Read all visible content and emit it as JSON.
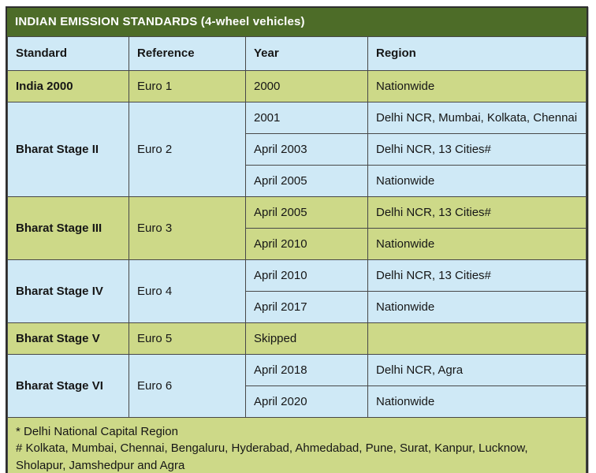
{
  "title": "INDIAN EMISSION STANDARDS (4-wheel vehicles)",
  "columns": [
    "Standard",
    "Reference",
    "Year",
    "Region"
  ],
  "groups": [
    {
      "standard": "India 2000",
      "reference": "Euro 1",
      "theme": "green",
      "entries": [
        {
          "year": "2000",
          "region": "Nationwide"
        }
      ]
    },
    {
      "standard": "Bharat Stage II",
      "reference": "Euro 2",
      "theme": "blue",
      "entries": [
        {
          "year": "2001",
          "region": "Delhi NCR, Mumbai, Kolkata, Chennai"
        },
        {
          "year": "April 2003",
          "region": "Delhi NCR, 13 Cities#"
        },
        {
          "year": "April 2005",
          "region": "Nationwide"
        }
      ]
    },
    {
      "standard": "Bharat Stage III",
      "reference": "Euro 3",
      "theme": "green",
      "entries": [
        {
          "year": "April 2005",
          "region": "Delhi NCR, 13 Cities#"
        },
        {
          "year": "April 2010",
          "region": "Nationwide"
        }
      ]
    },
    {
      "standard": "Bharat Stage IV",
      "reference": "Euro 4",
      "theme": "blue",
      "entries": [
        {
          "year": "April 2010",
          "region": "Delhi NCR, 13 Cities#"
        },
        {
          "year": "April 2017",
          "region": "Nationwide"
        }
      ]
    },
    {
      "standard": "Bharat Stage V",
      "reference": "Euro 5",
      "theme": "green",
      "entries": [
        {
          "year": "Skipped",
          "region": ""
        }
      ]
    },
    {
      "standard": "Bharat Stage VI",
      "reference": "Euro 6",
      "theme": "blue",
      "entries": [
        {
          "year": "April 2018",
          "region": "Delhi NCR, Agra"
        },
        {
          "year": "April 2020",
          "region": "Nationwide"
        }
      ]
    }
  ],
  "footnotes": [
    "* Delhi National Capital Region",
    "# Kolkata, Mumbai, Chennai, Bengaluru, Hyderabad, Ahmedabad, Pune, Surat, Kanpur, Lucknow, Sholapur, Jamshedpur and Agra"
  ],
  "colors": {
    "title_bg": "#4d6c28",
    "title_text": "#ffffff",
    "green_row_bg": "#cdd988",
    "blue_row_bg": "#cfe9f6",
    "grid_line": "#484848",
    "outer_border": "#2e2e2e",
    "cell_text": "#161616"
  }
}
